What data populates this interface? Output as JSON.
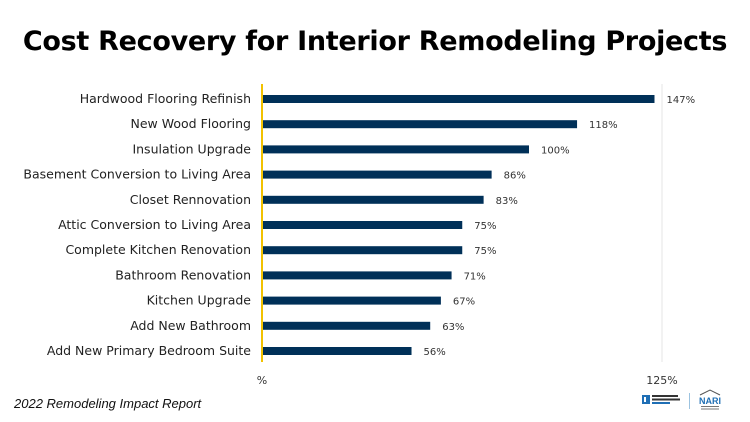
{
  "chart_data": {
    "type": "bar",
    "orientation": "horizontal",
    "title": "Cost Recovery for Interior Remodeling Projects",
    "categories": [
      "Hardwood Flooring Refinish",
      "New Wood Flooring",
      "Insulation Upgrade",
      "Basement Conversion to Living Area",
      "Closet Rennovation",
      "Attic  Conversion to Living Area",
      "Complete Kitchen Renovation",
      "Bathroom Renovation",
      "Kitchen Upgrade",
      "Add New Bathroom",
      "Add New Primary Bedroom Suite"
    ],
    "values": [
      147,
      118,
      100,
      86,
      83,
      75,
      75,
      71,
      67,
      63,
      56
    ],
    "data_labels": [
      "147%",
      "118%",
      "100%",
      "86%",
      "83%",
      "75%",
      "75%",
      "71%",
      "67%",
      "63%",
      "56%"
    ],
    "x_tick_labels": [
      "%",
      "125%"
    ],
    "bar_color": "#003058",
    "baseline_color": "#f2c200",
    "grid": false
  },
  "footer": "2022 Remodeling Impact Report",
  "logos": [
    "NATIONAL ASSOCIATION OF REALTORS",
    "NARI"
  ]
}
